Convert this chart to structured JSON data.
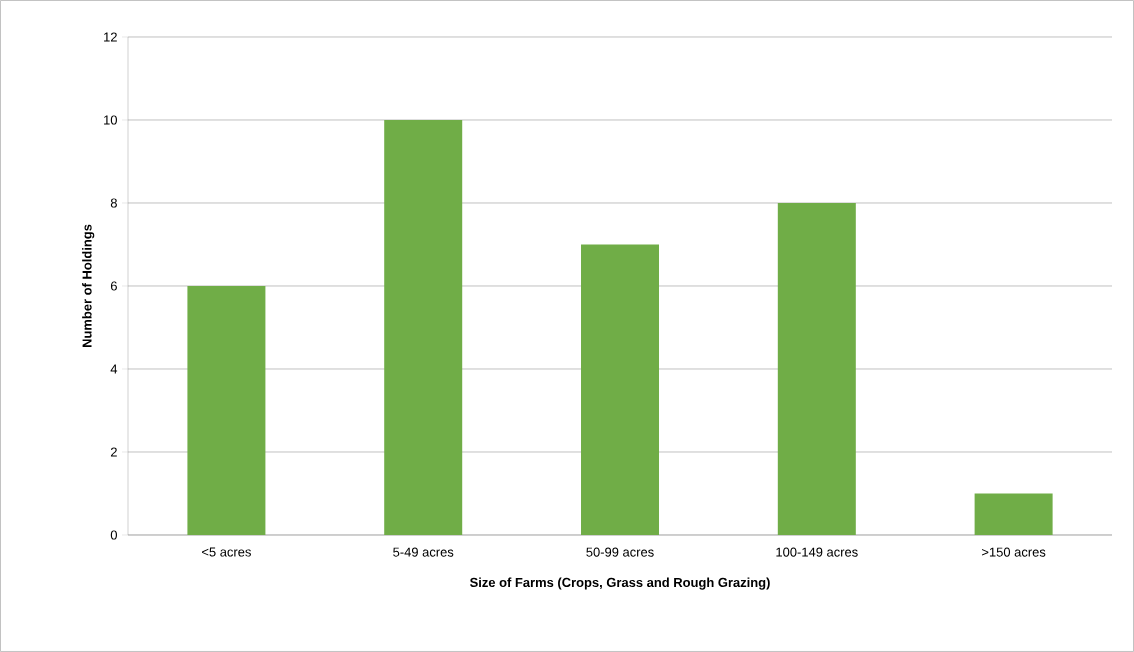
{
  "chart_data": {
    "type": "bar",
    "xlabel": "Size of Farms (Crops, Grass and Rough Grazing)",
    "ylabel": "Number of Holdings",
    "categories": [
      "<5 acres",
      "5-49 acres",
      "50-99 acres",
      "100-149 acres",
      ">150 acres"
    ],
    "values": [
      6,
      10,
      7,
      8,
      1
    ],
    "color": "#70ad47",
    "ylim": [
      0,
      12
    ],
    "yticks": [
      0,
      2,
      4,
      6,
      8,
      10,
      12
    ],
    "grid": "y"
  }
}
